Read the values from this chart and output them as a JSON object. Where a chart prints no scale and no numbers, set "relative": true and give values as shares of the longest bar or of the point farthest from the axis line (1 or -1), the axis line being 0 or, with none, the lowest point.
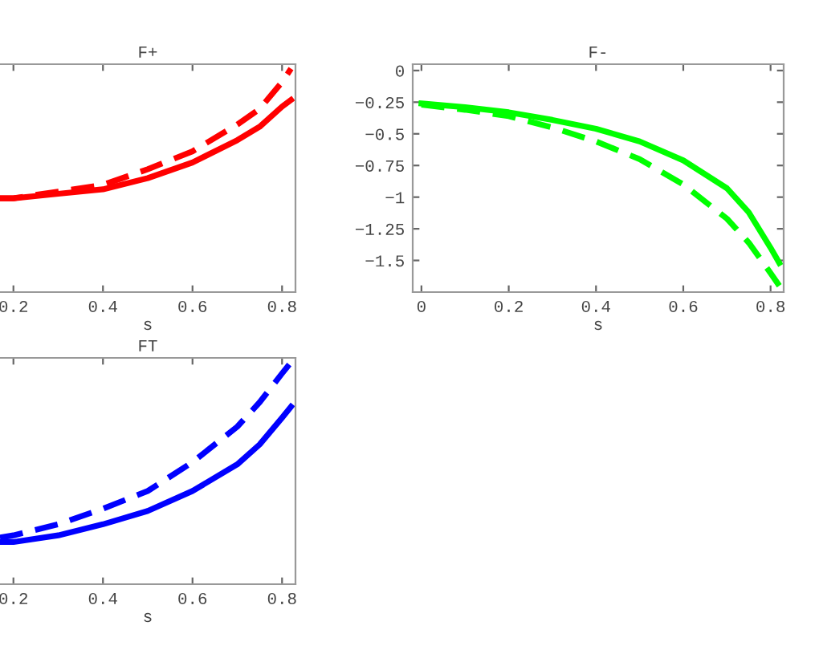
{
  "chart_data": [
    {
      "type": "line",
      "title": "F+",
      "xlabel": "s",
      "relative": true,
      "tick_labels": "x",
      "xlim": [
        0.17,
        0.83
      ],
      "xticks": [
        0.2,
        0.4,
        0.6,
        0.8
      ],
      "x": [
        0.17,
        0.2,
        0.3,
        0.4,
        0.5,
        0.6,
        0.7,
        0.75,
        0.8,
        0.82
      ],
      "series": [
        {
          "color": "#ff0000",
          "line_style": "solid",
          "values": [
            0.42,
            0.42,
            0.44,
            0.46,
            0.51,
            0.58,
            0.68,
            0.74,
            0.83,
            0.86
          ]
        },
        {
          "color": "#ff0000",
          "line_style": "dashed",
          "values": [
            0.42,
            0.42,
            0.45,
            0.48,
            0.55,
            0.63,
            0.75,
            0.82,
            0.94,
            1
          ]
        }
      ]
    },
    {
      "type": "line",
      "title": "F-",
      "xlabel": "s",
      "xlim": [
        -0.02,
        0.83
      ],
      "xticks": [
        0,
        0.2,
        0.4,
        0.6,
        0.8
      ],
      "ylim": [
        -1.75,
        0.05
      ],
      "yticks": [
        0,
        {
          "value": -0.25,
          "label": "−0.25"
        },
        {
          "value": -0.5,
          "label": "−0.5"
        },
        {
          "value": -0.75,
          "label": "−0.75"
        },
        {
          "value": -1,
          "label": "−1"
        },
        {
          "value": -1.25,
          "label": "−1.25"
        },
        {
          "value": -1.5,
          "label": "−1.5"
        }
      ],
      "x": [
        0,
        0.1,
        0.2,
        0.3,
        0.4,
        0.5,
        0.6,
        0.7,
        0.75,
        0.8,
        0.82
      ],
      "series": [
        {
          "color": "#00ff00",
          "line_style": "solid",
          "values": [
            -0.26,
            -0.29,
            -0.33,
            -0.39,
            -0.46,
            -0.56,
            -0.71,
            -0.93,
            -1.12,
            -1.4,
            -1.52
          ]
        },
        {
          "color": "#00ff00",
          "line_style": "dashed",
          "values": [
            -0.27,
            -0.31,
            -0.36,
            -0.45,
            -0.56,
            -0.7,
            -0.9,
            -1.17,
            -1.36,
            -1.6,
            -1.7
          ]
        }
      ]
    },
    {
      "type": "line",
      "title": "FT",
      "xlabel": "s",
      "relative": true,
      "tick_labels": "x",
      "xlim": [
        0.17,
        0.83
      ],
      "xticks": [
        0.2,
        0.4,
        0.6,
        0.8
      ],
      "x": [
        0.17,
        0.2,
        0.3,
        0.4,
        0.5,
        0.6,
        0.7,
        0.75,
        0.8,
        0.82
      ],
      "series": [
        {
          "color": "#0000ff",
          "line_style": "solid",
          "values": [
            0.19,
            0.19,
            0.22,
            0.27,
            0.33,
            0.42,
            0.54,
            0.63,
            0.75,
            0.8
          ]
        },
        {
          "color": "#0000ff",
          "line_style": "dashed",
          "values": [
            0.21,
            0.22,
            0.27,
            0.34,
            0.42,
            0.55,
            0.71,
            0.82,
            0.95,
            1
          ]
        }
      ]
    }
  ]
}
